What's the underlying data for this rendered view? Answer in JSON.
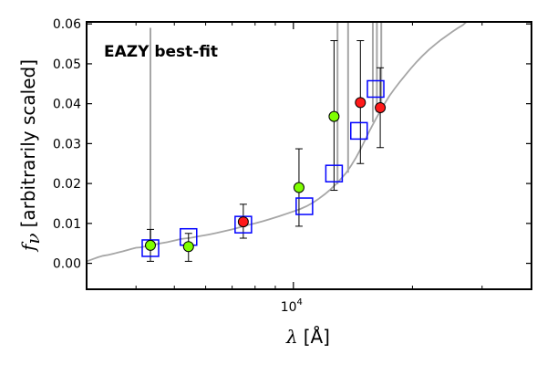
{
  "chart_data": {
    "type": "scatter",
    "title": "",
    "xlabel": "λ [Å]",
    "ylabel": "f_ν [arbitrarily scaled]",
    "ylabel_symbol": "f",
    "ylabel_subscript": "ν",
    "ylabel_text": "[arbitrarily scaled]",
    "xlabel_symbol": "λ",
    "xlabel_text": "[Å]",
    "x_scale": "log",
    "xlim": [
      3000,
      40000
    ],
    "ylim": [
      -0.0065,
      0.0605
    ],
    "yticks": [
      0.0,
      0.01,
      0.02,
      0.03,
      0.04,
      0.05,
      0.06
    ],
    "ytick_labels": [
      "0.00",
      "0.01",
      "0.02",
      "0.03",
      "0.04",
      "0.05",
      "0.06"
    ],
    "xticks_major": [
      10000
    ],
    "xtick_label_base": "10",
    "xtick_label_exp": "4",
    "xticks_minor": [
      4000,
      5000,
      6000,
      7000,
      8000,
      9000,
      20000,
      30000,
      40000
    ],
    "grid": false,
    "annotation": {
      "text": "EAZY best-fit",
      "color": "#ff0000"
    },
    "colors": {
      "sed": "#a6a6a6",
      "model_box": "#0000ff",
      "green_point": "#7fff00",
      "red_point": "#ff1a1a",
      "errorbar": "#000000"
    },
    "sed_curve": [
      [
        3000,
        0.0005
      ],
      [
        3100,
        0.001
      ],
      [
        3200,
        0.0015
      ],
      [
        3300,
        0.0019
      ],
      [
        3400,
        0.0021
      ],
      [
        3500,
        0.0024
      ],
      [
        3600,
        0.0027
      ],
      [
        3700,
        0.003
      ],
      [
        3800,
        0.0033
      ],
      [
        3900,
        0.0036
      ],
      [
        4000,
        0.0039
      ],
      [
        4100,
        0.004
      ],
      [
        4200,
        0.0042
      ],
      [
        4400,
        0.0046
      ],
      [
        4600,
        0.005
      ],
      [
        4800,
        0.0053
      ],
      [
        5000,
        0.0057
      ],
      [
        5200,
        0.0061
      ],
      [
        5500,
        0.0064
      ],
      [
        5800,
        0.0068
      ],
      [
        6100,
        0.0072
      ],
      [
        6400,
        0.0076
      ],
      [
        6700,
        0.0081
      ],
      [
        7000,
        0.0085
      ],
      [
        7300,
        0.009
      ],
      [
        7600,
        0.0095
      ],
      [
        8000,
        0.01
      ],
      [
        8400,
        0.0106
      ],
      [
        8800,
        0.0112
      ],
      [
        9200,
        0.0118
      ],
      [
        9600,
        0.0124
      ],
      [
        10000,
        0.013
      ],
      [
        10400,
        0.0136
      ],
      [
        10800,
        0.0143
      ],
      [
        11200,
        0.0152
      ],
      [
        11600,
        0.0162
      ],
      [
        12000,
        0.0173
      ],
      [
        12400,
        0.0185
      ],
      [
        12800,
        0.0198
      ],
      [
        13200,
        0.0212
      ],
      [
        13600,
        0.0227
      ],
      [
        14000,
        0.0245
      ],
      [
        14400,
        0.0265
      ],
      [
        14800,
        0.0287
      ],
      [
        15200,
        0.031
      ],
      [
        15600,
        0.0333
      ],
      [
        16000,
        0.0354
      ],
      [
        16500,
        0.0378
      ],
      [
        17000,
        0.04
      ],
      [
        17500,
        0.042
      ],
      [
        18000,
        0.0437
      ],
      [
        18600,
        0.0455
      ],
      [
        19200,
        0.0472
      ],
      [
        19800,
        0.0488
      ],
      [
        20500,
        0.0505
      ],
      [
        21200,
        0.052
      ],
      [
        22000,
        0.0535
      ],
      [
        22800,
        0.0548
      ],
      [
        23600,
        0.056
      ],
      [
        24400,
        0.057
      ],
      [
        25200,
        0.058
      ],
      [
        26000,
        0.0589
      ],
      [
        26800,
        0.0597
      ],
      [
        27400,
        0.0605
      ]
    ],
    "sed_spikes": [
      {
        "x": 4350,
        "y": 0.059
      },
      {
        "x": 12930,
        "y": 0.0605
      },
      {
        "x": 13750,
        "y": 0.0605
      },
      {
        "x": 15880,
        "y": 0.0605
      },
      {
        "x": 16260,
        "y": 0.0605
      },
      {
        "x": 16680,
        "y": 0.0605
      }
    ],
    "model_boxes": [
      {
        "x": 4350,
        "y": 0.0038
      },
      {
        "x": 5430,
        "y": 0.0066
      },
      {
        "x": 7470,
        "y": 0.0097
      },
      {
        "x": 10660,
        "y": 0.0143
      },
      {
        "x": 12670,
        "y": 0.0225
      },
      {
        "x": 14650,
        "y": 0.0332
      },
      {
        "x": 16140,
        "y": 0.0437
      }
    ],
    "series": [
      {
        "color_key": "green_point",
        "points": [
          {
            "x": 4350,
            "y": 0.0045,
            "ylo": 0.0005,
            "yhi": 0.0085
          },
          {
            "x": 5430,
            "y": 0.0042,
            "ylo": 0.0005,
            "yhi": 0.0075
          },
          {
            "x": 10330,
            "y": 0.019,
            "ylo": 0.0093,
            "yhi": 0.0287
          },
          {
            "x": 12670,
            "y": 0.0368,
            "ylo": 0.0183,
            "yhi": 0.0558
          }
        ]
      },
      {
        "color_key": "red_point",
        "points": [
          {
            "x": 7470,
            "y": 0.0104,
            "ylo": 0.0063,
            "yhi": 0.0148
          },
          {
            "x": 14770,
            "y": 0.0403,
            "ylo": 0.025,
            "yhi": 0.0558
          },
          {
            "x": 16580,
            "y": 0.039,
            "ylo": 0.029,
            "yhi": 0.049
          }
        ]
      }
    ]
  }
}
